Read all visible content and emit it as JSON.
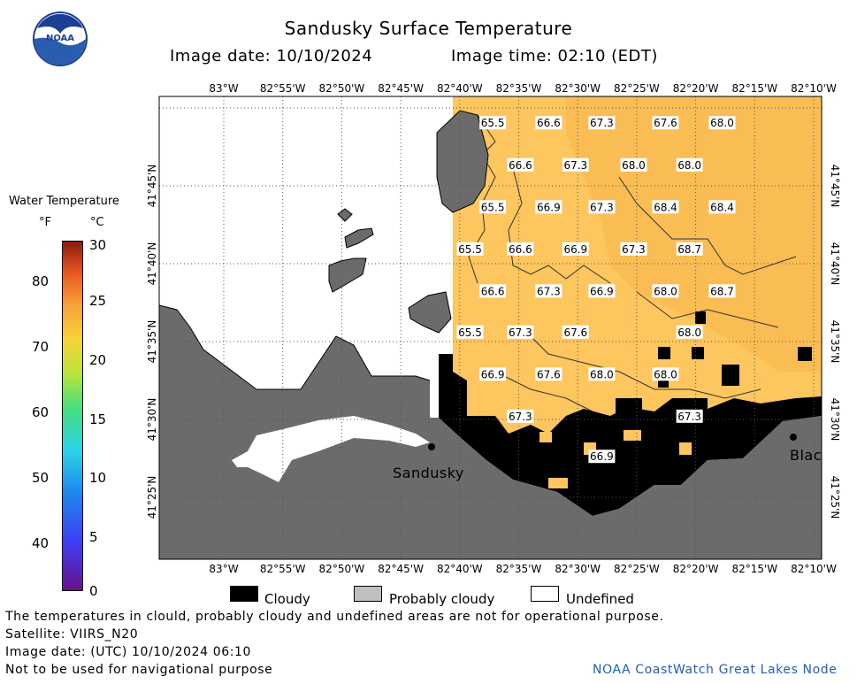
{
  "header": {
    "title": "Sandusky Surface Temperature",
    "image_date": "Image date: 10/10/2024",
    "image_time": "Image time: 02:10 (EDT)"
  },
  "colorbar": {
    "title": "Water Temperature",
    "unit_f": "°F",
    "unit_c": "°C",
    "f_ticks": [
      "80",
      "70",
      "60",
      "50",
      "40"
    ],
    "c_ticks": [
      "30",
      "25",
      "20",
      "15",
      "10",
      "5",
      "0"
    ]
  },
  "map": {
    "lon_labels": [
      "83°W",
      "82°55'W",
      "82°50'W",
      "82°45'W",
      "82°40'W",
      "82°35'W",
      "82°30'W",
      "82°25'W",
      "82°20'W",
      "82°15'W",
      "82°10'W"
    ],
    "lat_labels": [
      "41°45'N",
      "41°40'N",
      "41°35'N",
      "41°30'N",
      "41°25'N"
    ],
    "places": [
      "Sandusky",
      "Blac"
    ],
    "temps": [
      {
        "v": "65.5",
        "lon": -82.62,
        "lat": 41.817
      },
      {
        "v": "66.6",
        "lon": -82.541,
        "lat": 41.817
      },
      {
        "v": "67.3",
        "lon": -82.466,
        "lat": 41.817
      },
      {
        "v": "67.6",
        "lon": -82.376,
        "lat": 41.817
      },
      {
        "v": "68.0",
        "lon": -82.296,
        "lat": 41.817
      },
      {
        "v": "66.6",
        "lon": -82.581,
        "lat": 41.772
      },
      {
        "v": "67.3",
        "lon": -82.503,
        "lat": 41.772
      },
      {
        "v": "68.0",
        "lon": -82.421,
        "lat": 41.772
      },
      {
        "v": "68.0",
        "lon": -82.342,
        "lat": 41.772
      },
      {
        "v": "65.5",
        "lon": -82.62,
        "lat": 41.727
      },
      {
        "v": "66.9",
        "lon": -82.541,
        "lat": 41.727
      },
      {
        "v": "67.3",
        "lon": -82.466,
        "lat": 41.727
      },
      {
        "v": "68.4",
        "lon": -82.376,
        "lat": 41.727
      },
      {
        "v": "68.4",
        "lon": -82.296,
        "lat": 41.727
      },
      {
        "v": "65.5",
        "lon": -82.652,
        "lat": 41.682
      },
      {
        "v": "66.6",
        "lon": -82.581,
        "lat": 41.682
      },
      {
        "v": "66.9",
        "lon": -82.503,
        "lat": 41.682
      },
      {
        "v": "67.3",
        "lon": -82.421,
        "lat": 41.682
      },
      {
        "v": "68.7",
        "lon": -82.342,
        "lat": 41.682
      },
      {
        "v": "66.6",
        "lon": -82.62,
        "lat": 41.637
      },
      {
        "v": "67.3",
        "lon": -82.541,
        "lat": 41.637
      },
      {
        "v": "66.9",
        "lon": -82.466,
        "lat": 41.637
      },
      {
        "v": "68.0",
        "lon": -82.376,
        "lat": 41.637
      },
      {
        "v": "68.7",
        "lon": -82.296,
        "lat": 41.637
      },
      {
        "v": "65.5",
        "lon": -82.652,
        "lat": 41.593
      },
      {
        "v": "67.3",
        "lon": -82.581,
        "lat": 41.593
      },
      {
        "v": "67.6",
        "lon": -82.503,
        "lat": 41.593
      },
      {
        "v": "68.0",
        "lon": -82.342,
        "lat": 41.593
      },
      {
        "v": "66.9",
        "lon": -82.62,
        "lat": 41.548
      },
      {
        "v": "67.6",
        "lon": -82.541,
        "lat": 41.548
      },
      {
        "v": "68.0",
        "lon": -82.466,
        "lat": 41.548
      },
      {
        "v": "68.0",
        "lon": -82.376,
        "lat": 41.548
      },
      {
        "v": "67.3",
        "lon": -82.581,
        "lat": 41.503
      },
      {
        "v": "67.3",
        "lon": -82.342,
        "lat": 41.503
      },
      {
        "v": "66.9",
        "lon": -82.466,
        "lat": 41.46
      }
    ]
  },
  "legend": {
    "cloudy": "Cloudy",
    "probably_cloudy": "Probably cloudy",
    "undefined": "Undefined",
    "colors": {
      "cloudy": "#000000",
      "probably_cloudy": "#c0c0c0",
      "undefined": "#ffffff",
      "land": "#6b6b6b",
      "water": "#fdc65e"
    }
  },
  "footer": {
    "disclaimer": "The temperatures in clould, probably cloudy and undefined areas are not for operational purpose.",
    "satellite": "Satellite: VIIRS_N20",
    "utc_date": "Image date: (UTC) 10/10/2024  06:10",
    "nav_warning": "Not to be used for navigational purpose",
    "credit": "NOAA CoastWatch Great Lakes Node",
    "credit_color": "#1f5fbf"
  },
  "logo": {
    "text": "NOAA"
  }
}
